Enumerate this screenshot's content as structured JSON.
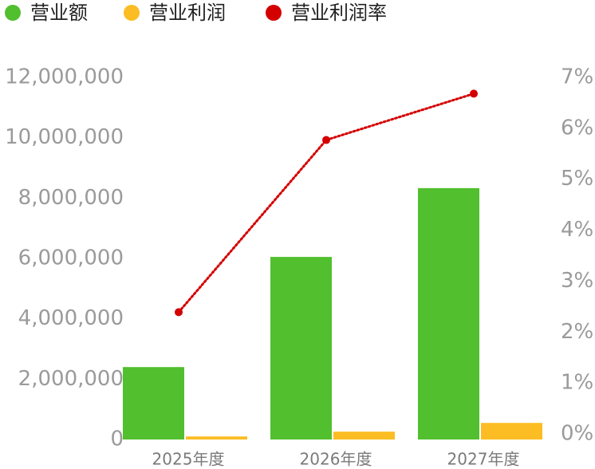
{
  "chart_data": {
    "type": "bar-line",
    "categories": [
      "2025年度",
      "2026年度",
      "2027年度"
    ],
    "series": [
      {
        "name": "营业额",
        "type": "bar",
        "color": "#52bf2e",
        "values": [
          2400000,
          6050000,
          8330000
        ]
      },
      {
        "name": "营业利润",
        "type": "bar",
        "color": "#fbbd23",
        "values": [
          100000,
          260000,
          550000
        ]
      },
      {
        "name": "营业利润率",
        "type": "line",
        "axis": "y2",
        "color": "#d40000",
        "values": [
          2.39,
          5.77,
          6.68
        ]
      }
    ],
    "ylim": [
      0,
      12000000
    ],
    "yticks": [
      0,
      {
        "value": 2000000,
        "label": "2,000,000"
      },
      {
        "value": 4000000,
        "label": "4,000,000"
      },
      {
        "value": 6000000,
        "label": "6,000,000"
      },
      {
        "value": 8000000,
        "label": "8,000,000"
      },
      {
        "value": 10000000,
        "label": "10,000,000"
      },
      {
        "value": 12000000,
        "label": "12,000,000"
      }
    ],
    "y2lim": [
      0,
      7
    ],
    "y2ticks": [
      {
        "value": 0,
        "label": "0%"
      },
      {
        "value": 1,
        "label": "1%"
      },
      {
        "value": 2,
        "label": "2%"
      },
      {
        "value": 3,
        "label": "3%"
      },
      {
        "value": 4,
        "label": "4%"
      },
      {
        "value": 5,
        "label": "5%"
      },
      {
        "value": 6,
        "label": "6%"
      },
      {
        "value": 7,
        "label": "7%"
      }
    ],
    "grid": false,
    "legend": "top-left"
  }
}
